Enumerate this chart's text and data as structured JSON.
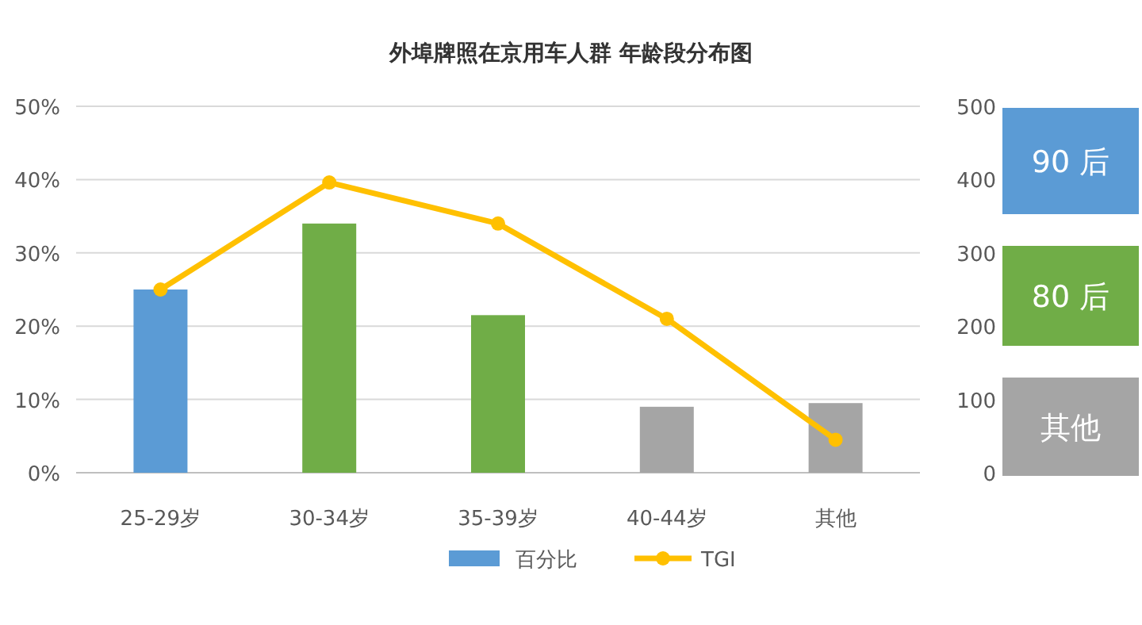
{
  "chart_data": {
    "type": "bar",
    "title": "外埠牌照在京用车人群  年龄段分布图",
    "categories": [
      "25-29岁",
      "30-34岁",
      "35-39岁",
      "40-44岁",
      "其他"
    ],
    "series": [
      {
        "name": "百分比",
        "colors": [
          "#5b9bd5",
          "#70ad47",
          "#70ad47",
          "#a5a5a5",
          "#a5a5a5"
        ],
        "values": [
          25,
          34,
          21.5,
          9,
          9.5
        ]
      },
      {
        "name": "TGI",
        "type": "line",
        "color": "#ffc000",
        "axis": "y2",
        "values": [
          250,
          396,
          340,
          210,
          45
        ]
      }
    ],
    "ylim": [
      0,
      50
    ],
    "yticks": [
      {
        "value": 0,
        "label": "0%"
      },
      {
        "value": 10,
        "label": "10%"
      },
      {
        "value": 20,
        "label": "20%"
      },
      {
        "value": 30,
        "label": "30%"
      },
      {
        "value": 40,
        "label": "40%"
      },
      {
        "value": 50,
        "label": "50%"
      }
    ],
    "y2lim": [
      0,
      500
    ],
    "y2ticks": [
      0,
      100,
      200,
      300,
      400,
      500
    ],
    "grid": "y",
    "legend": "bottom",
    "marker": "circle",
    "annotations": [
      "90 后",
      "80 后",
      "其他"
    ]
  }
}
